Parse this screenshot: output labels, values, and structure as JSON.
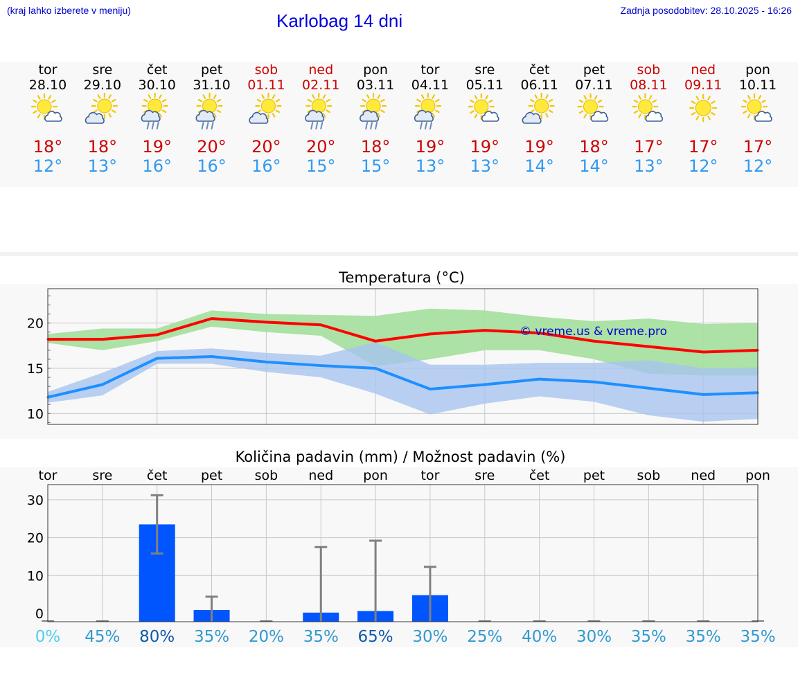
{
  "header": {
    "hint": "(kraj lahko izberete v meniju)",
    "title": "Karlobag 14 dni",
    "updated": "Zadnja posodobitev: 28.10.2025 - 16:26"
  },
  "colors": {
    "weekday": "#000000",
    "weekend": "#cc0000",
    "temp_max": "#cc0000",
    "temp_min": "#3399ee",
    "max_line": "#ff0000",
    "max_band": "#a8e0a0",
    "min_line": "#1e8fff",
    "min_band": "#a8c4f0",
    "bar": "#0055ff",
    "whisker": "#808080",
    "watermark": "#0000cc"
  },
  "days": [
    {
      "dow": "tor",
      "date": "28.10",
      "weekend": false,
      "icon": "sun-cloud-icon",
      "tmax": "18°",
      "tmin": "12°"
    },
    {
      "dow": "sre",
      "date": "29.10",
      "weekend": false,
      "icon": "cloud-sun-icon",
      "tmax": "18°",
      "tmin": "13°"
    },
    {
      "dow": "čet",
      "date": "30.10",
      "weekend": false,
      "icon": "sun-rain-cloud-icon",
      "tmax": "19°",
      "tmin": "16°"
    },
    {
      "dow": "pet",
      "date": "31.10",
      "weekend": false,
      "icon": "sun-rain-cloud-icon",
      "tmax": "20°",
      "tmin": "16°"
    },
    {
      "dow": "sob",
      "date": "01.11",
      "weekend": true,
      "icon": "cloud-sun-icon",
      "tmax": "20°",
      "tmin": "16°"
    },
    {
      "dow": "ned",
      "date": "02.11",
      "weekend": true,
      "icon": "sun-rain-cloud-icon",
      "tmax": "20°",
      "tmin": "15°"
    },
    {
      "dow": "pon",
      "date": "03.11",
      "weekend": false,
      "icon": "sun-rain-cloud-icon",
      "tmax": "18°",
      "tmin": "15°"
    },
    {
      "dow": "tor",
      "date": "04.11",
      "weekend": false,
      "icon": "sun-rain-cloud-icon",
      "tmax": "19°",
      "tmin": "13°"
    },
    {
      "dow": "sre",
      "date": "05.11",
      "weekend": false,
      "icon": "sun-cloud-icon",
      "tmax": "19°",
      "tmin": "13°"
    },
    {
      "dow": "čet",
      "date": "06.11",
      "weekend": false,
      "icon": "cloud-sun-icon",
      "tmax": "19°",
      "tmin": "14°"
    },
    {
      "dow": "pet",
      "date": "07.11",
      "weekend": false,
      "icon": "sun-cloud-icon",
      "tmax": "18°",
      "tmin": "14°"
    },
    {
      "dow": "sob",
      "date": "08.11",
      "weekend": true,
      "icon": "sun-cloud-icon",
      "tmax": "17°",
      "tmin": "13°"
    },
    {
      "dow": "ned",
      "date": "09.11",
      "weekend": true,
      "icon": "sun-icon",
      "tmax": "17°",
      "tmin": "12°"
    },
    {
      "dow": "pon",
      "date": "10.11",
      "weekend": false,
      "icon": "sun-cloud-icon",
      "tmax": "17°",
      "tmin": "12°"
    }
  ],
  "chart_data": [
    {
      "type": "line",
      "title": "Temperatura (°C)",
      "watermark": "© vreme.us & vreme.pro",
      "ylim": [
        8.8,
        23.8
      ],
      "yticks": [
        10,
        15,
        20
      ],
      "x": [
        0,
        1,
        2,
        3,
        4,
        5,
        6,
        7,
        8,
        9,
        10,
        11,
        12,
        13
      ],
      "grid": true,
      "series": [
        {
          "role": "max",
          "values": [
            18.2,
            18.2,
            18.7,
            20.5,
            20.1,
            19.8,
            18.0,
            18.8,
            19.2,
            18.9,
            18.0,
            17.4,
            16.8,
            17.0
          ],
          "band_low": [
            17.8,
            17.0,
            18.0,
            19.6,
            19.0,
            18.6,
            15.2,
            16.0,
            17.0,
            17.0,
            16.0,
            14.4,
            14.2,
            14.2
          ],
          "band_high": [
            18.8,
            19.4,
            19.4,
            21.4,
            21.0,
            20.9,
            20.8,
            21.6,
            21.4,
            20.7,
            20.2,
            20.5,
            19.9,
            20.0
          ]
        },
        {
          "role": "min",
          "values": [
            11.8,
            13.2,
            16.1,
            16.3,
            15.7,
            15.3,
            15.0,
            12.7,
            13.2,
            13.8,
            13.5,
            12.8,
            12.1,
            12.3
          ],
          "band_low": [
            11.2,
            12.0,
            15.5,
            15.5,
            14.6,
            14.0,
            12.2,
            9.9,
            11.1,
            11.9,
            11.3,
            9.8,
            9.1,
            9.4
          ],
          "band_high": [
            12.4,
            14.5,
            16.9,
            17.2,
            16.7,
            16.4,
            17.9,
            15.4,
            15.4,
            15.6,
            15.6,
            15.9,
            15.0,
            15.1
          ]
        }
      ]
    },
    {
      "type": "bar",
      "title": "Količina padavin (mm) / Možnost padavin (%)",
      "categories": [
        "tor",
        "sre",
        "čet",
        "pet",
        "sob",
        "ned",
        "pon",
        "tor",
        "sre",
        "čet",
        "pet",
        "sob",
        "ned",
        "pon"
      ],
      "ylim": [
        -2.2,
        34
      ],
      "yticks": [
        0,
        10,
        20,
        30
      ],
      "grid": true,
      "values": [
        0,
        0,
        23.5,
        0.9,
        0,
        0.2,
        0.6,
        4.8,
        0,
        0,
        0,
        0,
        0,
        0
      ],
      "error_low": [
        0,
        0,
        15.8,
        0,
        0,
        0,
        0,
        0,
        0,
        0,
        0,
        0,
        0,
        0
      ],
      "error_high": [
        0,
        0,
        31.2,
        4.4,
        0,
        17.5,
        19.2,
        12.3,
        0,
        0,
        0,
        0,
        0,
        0
      ],
      "probability_labels": [
        "0%",
        "45%",
        "80%",
        "35%",
        "20%",
        "35%",
        "65%",
        "30%",
        "25%",
        "40%",
        "30%",
        "35%",
        "35%",
        "35%"
      ],
      "probability_colors": [
        "#55ccee",
        "#3399cc",
        "#0f5aa8",
        "#3399cc",
        "#3399cc",
        "#3399cc",
        "#0f5aa8",
        "#3399cc",
        "#3399cc",
        "#3399cc",
        "#3399cc",
        "#3399cc",
        "#3399cc",
        "#3399cc"
      ]
    }
  ]
}
